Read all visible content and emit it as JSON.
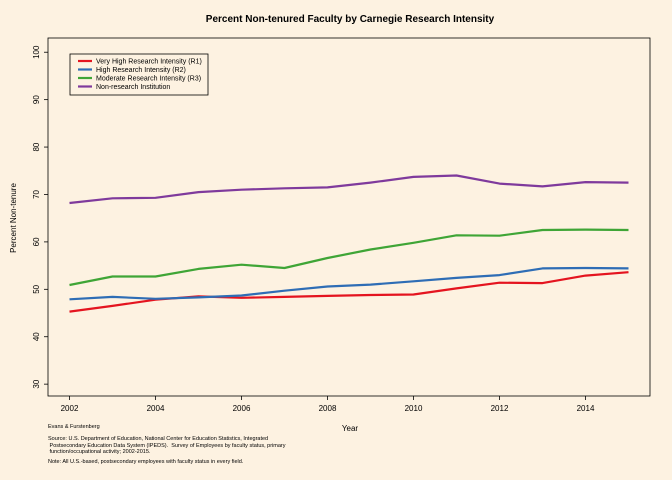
{
  "chart_data": {
    "type": "line",
    "title": "Percent Non-tenured Faculty by Carnegie Research Intensity",
    "xlabel": "Year",
    "ylabel": "Percent Non-tenure",
    "xlim": [
      2001.5,
      2015.5
    ],
    "ylim": [
      27.5,
      103
    ],
    "x_ticks": [
      2002,
      2004,
      2006,
      2008,
      2010,
      2012,
      2014
    ],
    "y_ticks": [
      30,
      40,
      50,
      60,
      70,
      80,
      90,
      100
    ],
    "grid": false,
    "legend_position": "top-left",
    "x": [
      2002,
      2003,
      2004,
      2005,
      2006,
      2007,
      2008,
      2009,
      2010,
      2011,
      2012,
      2013,
      2014,
      2015
    ],
    "series": [
      {
        "name": "Very High Research Intensity (R1)",
        "color": "#E4141F",
        "values": [
          45.3,
          46.5,
          47.8,
          48.5,
          48.2,
          48.4,
          48.6,
          48.8,
          48.9,
          50.2,
          51.4,
          51.3,
          52.9,
          53.6
        ]
      },
      {
        "name": "High Research Intensity (R2)",
        "color": "#2E6DB5",
        "values": [
          47.9,
          48.4,
          48.0,
          48.3,
          48.7,
          49.7,
          50.6,
          51.0,
          51.7,
          52.4,
          53.0,
          54.4,
          54.5,
          54.4
        ]
      },
      {
        "name": "Moderate Research Intensity (R3)",
        "color": "#3FA536",
        "values": [
          50.9,
          52.7,
          52.7,
          54.3,
          55.2,
          54.5,
          56.6,
          58.4,
          59.8,
          61.4,
          61.3,
          62.5,
          62.6,
          62.5
        ]
      },
      {
        "name": "Non-research Institution",
        "color": "#7F3A9C",
        "values": [
          68.2,
          69.2,
          69.3,
          70.5,
          71.0,
          71.3,
          71.5,
          72.5,
          73.7,
          74.0,
          72.3,
          71.7,
          72.6,
          72.5
        ]
      }
    ]
  },
  "footer": {
    "credit": "Evans & Furstenberg",
    "source": "Source: U.S. Department of Education, National Center for Education Statistics, Integrated\n Postsecondary Education Data System (IPEDS).  Survey of Employees by faculty status, primary\n function/occupational activity; 2002-2015.",
    "note": "Note: All U.S.-based, postsecondary employees with faculty status in every field."
  }
}
